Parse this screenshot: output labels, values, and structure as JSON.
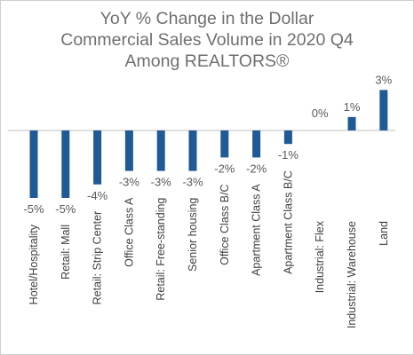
{
  "chart_data": {
    "type": "bar",
    "title_lines": [
      "YoY % Change in the Dollar",
      "Commercial Sales Volume in 2020 Q4",
      "Among REALTORS®"
    ],
    "categories": [
      "Hotel/Hospitality",
      "Retail: Mall",
      "Retail: Strip Center",
      "Office Class A",
      "Retail: Free-standing",
      "Senior housing",
      "Office Class B/C",
      "Apartment Class A",
      "Apartment Class B/C",
      "Industrial: Flex",
      "Industrial: Warehouse",
      "Land"
    ],
    "values": [
      -5,
      -5,
      -4,
      -3,
      -3,
      -3,
      -2,
      -2,
      -1,
      0,
      1,
      3
    ],
    "value_labels": [
      "-5%",
      "-5%",
      "-4%",
      "-3%",
      "-3%",
      "-3%",
      "-2%",
      "-2%",
      "-1%",
      "0%",
      "1%",
      "3%"
    ],
    "bar_color": "#1f5a96",
    "axis_color": "#bfbfbf",
    "grid": false,
    "legend": "none"
  }
}
